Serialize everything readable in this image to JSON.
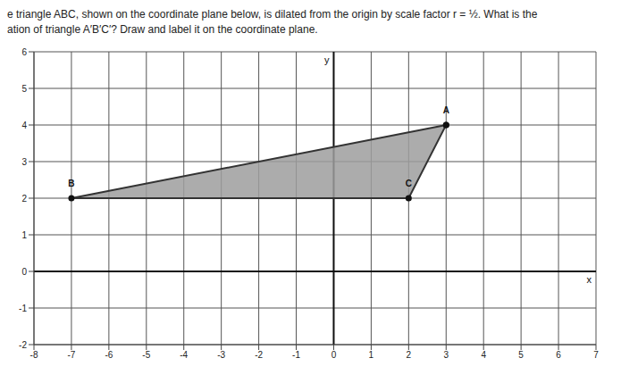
{
  "chart_data": {
    "type": "polygon",
    "title": [
      "e triangle ABC, shown on the coordinate plane below, is dilated from the origin by scale factor r = ½. What is the",
      "ation of triangle A′B′C′? Draw and label it on the coordinate plane."
    ],
    "x_label": "x",
    "y_label": "y",
    "labels": [
      "A",
      "B",
      "C"
    ],
    "x": [
      3,
      -7,
      2
    ],
    "y": [
      4,
      2,
      2
    ],
    "color": "#9e9e9e",
    "xlim": [
      -8,
      7
    ],
    "ylim": [
      -2,
      6
    ],
    "xticks": [
      -8,
      -7,
      -6,
      -5,
      -4,
      -3,
      -2,
      -1,
      0,
      1,
      2,
      3,
      4,
      5,
      6,
      7
    ],
    "yticks": [
      -2,
      -1,
      0,
      1,
      2,
      3,
      4,
      5,
      6
    ],
    "grid": true
  }
}
